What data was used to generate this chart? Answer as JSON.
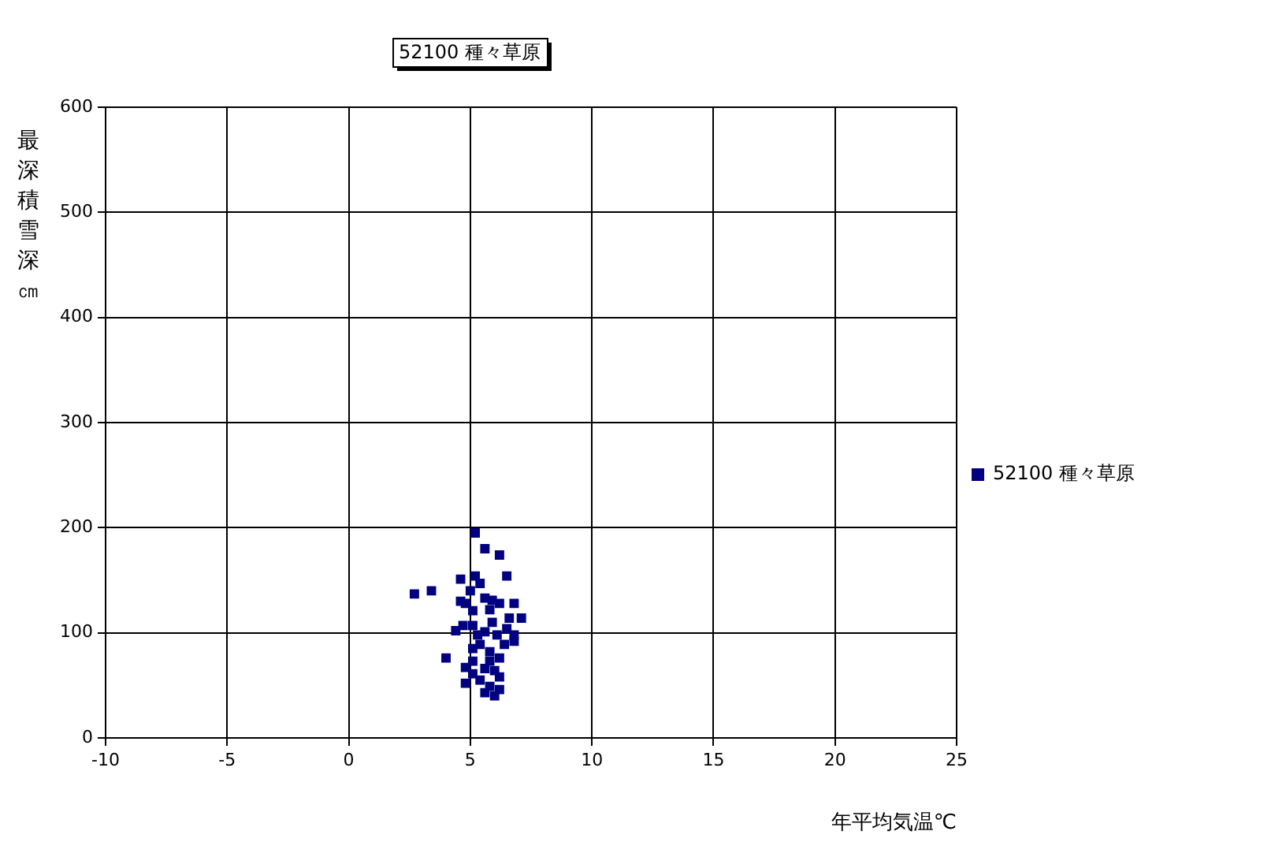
{
  "chart_data": {
    "type": "scatter",
    "title": "52100 種々草原",
    "xlabel": "年平均気温℃",
    "ylabel": "最深積雪深㎝",
    "xlim": [
      -10,
      25
    ],
    "xticks": [
      -10,
      -5,
      0,
      5,
      10,
      15,
      20,
      25
    ],
    "ylim": [
      0,
      600
    ],
    "yticks": [
      0,
      100,
      200,
      300,
      400,
      500,
      600
    ],
    "grid": true,
    "legend": "right",
    "marker": "square",
    "series": [
      {
        "name": "52100 種々草原",
        "color": "#000080",
        "x": [
          5.2,
          5.6,
          6.2,
          2.7,
          3.4,
          4.6,
          5.2,
          5.4,
          6.5,
          4.6,
          4.8,
          5.6,
          5.9,
          6.2,
          6.8,
          7.1,
          6.6,
          5.1,
          5.8,
          4.7,
          4.4,
          5.1,
          5.6,
          6.1,
          6.5,
          6.8,
          6.8,
          6.4,
          5.4,
          5.1,
          5.8,
          6.2,
          4.0,
          5.1,
          4.8,
          5.6,
          6.0,
          6.2,
          5.4,
          4.8,
          5.8,
          6.2,
          5.6,
          6.0,
          5.1,
          5.8,
          5.3,
          5.9,
          5.0
        ],
        "values": [
          195,
          180,
          174,
          137,
          140,
          151,
          154,
          147,
          154,
          130,
          128,
          133,
          131,
          128,
          128,
          114,
          114,
          121,
          122,
          107,
          102,
          107,
          101,
          98,
          104,
          98,
          92,
          89,
          89,
          85,
          82,
          76,
          76,
          73,
          67,
          66,
          64,
          58,
          55,
          52,
          49,
          46,
          43,
          40,
          61,
          73,
          98,
          110,
          140
        ]
      }
    ]
  }
}
